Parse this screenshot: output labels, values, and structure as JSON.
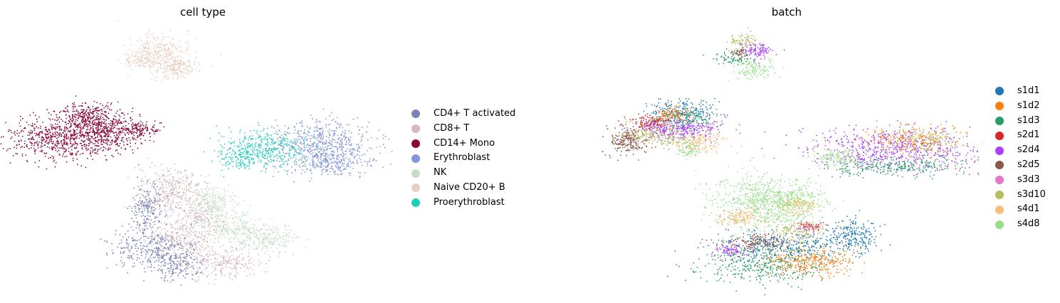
{
  "panels": [
    {
      "title": "cell type",
      "legend": [
        {
          "label": "CD4+ T activated",
          "color": "#7b84b8"
        },
        {
          "label": "CD8+ T",
          "color": "#d4b8bd"
        },
        {
          "label": "CD14+ Mono",
          "color": "#8b0a3c"
        },
        {
          "label": "Erythroblast",
          "color": "#8793dd"
        },
        {
          "label": "NK",
          "color": "#c5dcc6"
        },
        {
          "label": "Naive CD20+ B",
          "color": "#e8cfc4"
        },
        {
          "label": "Proerythroblast",
          "color": "#1fcfbd"
        }
      ]
    },
    {
      "title": "batch",
      "legend": [
        {
          "label": "s1d1",
          "color": "#1f77b4"
        },
        {
          "label": "s1d2",
          "color": "#ff7f0e"
        },
        {
          "label": "s1d3",
          "color": "#279e68"
        },
        {
          "label": "s2d1",
          "color": "#d62728"
        },
        {
          "label": "s2d4",
          "color": "#aa40fc"
        },
        {
          "label": "s2d5",
          "color": "#8c564b"
        },
        {
          "label": "s3d3",
          "color": "#e377c2"
        },
        {
          "label": "s3d10",
          "color": "#b5bd61"
        },
        {
          "label": "s4d1",
          "color": "#ffbb78"
        },
        {
          "label": "s4d8",
          "color": "#98df8a"
        }
      ]
    }
  ],
  "chart_data": [
    {
      "type": "scatter",
      "title": "cell type",
      "xlabel": "",
      "ylabel": "",
      "axes_visible": false,
      "legend_position": "right",
      "categories": [
        "CD4+ T activated",
        "CD8+ T",
        "CD14+ Mono",
        "Erythroblast",
        "NK",
        "Naive CD20+ B",
        "Proerythroblast"
      ]
    },
    {
      "type": "scatter",
      "title": "batch",
      "xlabel": "",
      "ylabel": "",
      "axes_visible": false,
      "legend_position": "right",
      "categories": [
        "s1d1",
        "s1d2",
        "s1d3",
        "s2d1",
        "s2d4",
        "s2d5",
        "s3d3",
        "s3d10",
        "s4d1",
        "s4d8"
      ]
    }
  ]
}
